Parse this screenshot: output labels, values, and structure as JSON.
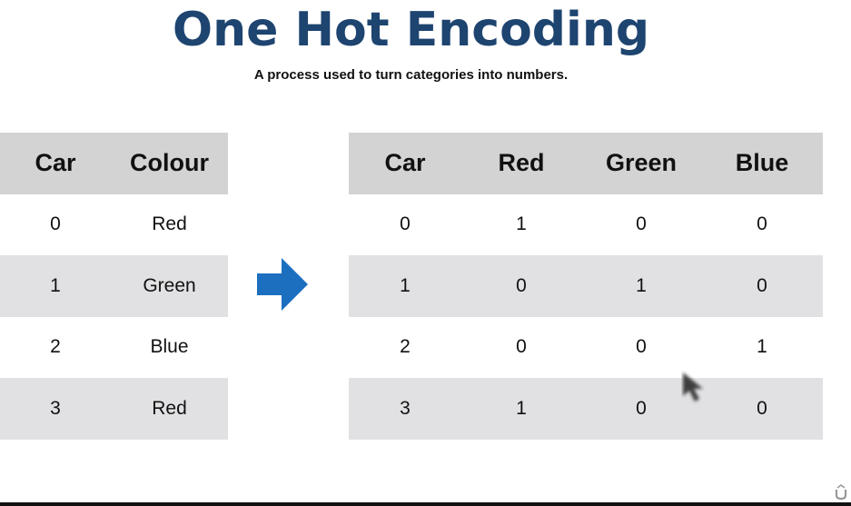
{
  "slide": {
    "title": "One Hot Encoding",
    "subtitle": "A process used to turn categories into numbers."
  },
  "left_table": {
    "headers": [
      "Car",
      "Colour"
    ],
    "rows": [
      [
        "0",
        "Red"
      ],
      [
        "1",
        "Green"
      ],
      [
        "2",
        "Blue"
      ],
      [
        "3",
        "Red"
      ]
    ]
  },
  "right_table": {
    "headers": [
      "Car",
      "Red",
      "Green",
      "Blue"
    ],
    "rows": [
      [
        "0",
        "1",
        "0",
        "0"
      ],
      [
        "1",
        "0",
        "1",
        "0"
      ],
      [
        "2",
        "0",
        "0",
        "1"
      ],
      [
        "3",
        "1",
        "0",
        "0"
      ]
    ]
  },
  "colors": {
    "title": "#1e4470",
    "arrow": "#1c6fbf",
    "header_bg": "#d3d3d3",
    "shaded_row_bg": "#e1e1e3"
  },
  "icons": {
    "arrow": "right-arrow-icon",
    "cursor": "mouse-pointer-icon",
    "watermark": "udemy-logo-icon"
  }
}
